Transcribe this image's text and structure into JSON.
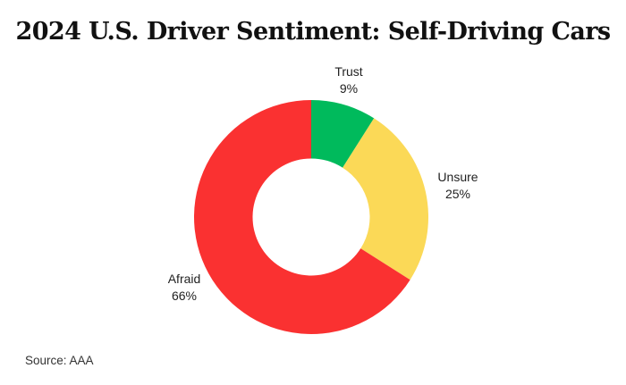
{
  "chart_data": {
    "type": "pie",
    "subtype": "donut",
    "title": "2024 U.S. Driver Sentiment: Self-Driving Cars",
    "source": "Source: AAA",
    "categories": [
      "Trust",
      "Unsure",
      "Afraid"
    ],
    "values": [
      9,
      25,
      66
    ],
    "value_labels": [
      "9%",
      "25%",
      "66%"
    ],
    "colors": [
      "#00BA5C",
      "#FBD957",
      "#FA3131"
    ],
    "unit": "%",
    "start_angle_deg": 0,
    "direction": "clockwise",
    "inner_radius_ratio": 0.5,
    "label_position": "outside",
    "legend": "none",
    "background": "#FFFFFF",
    "text_color": "#222222"
  }
}
